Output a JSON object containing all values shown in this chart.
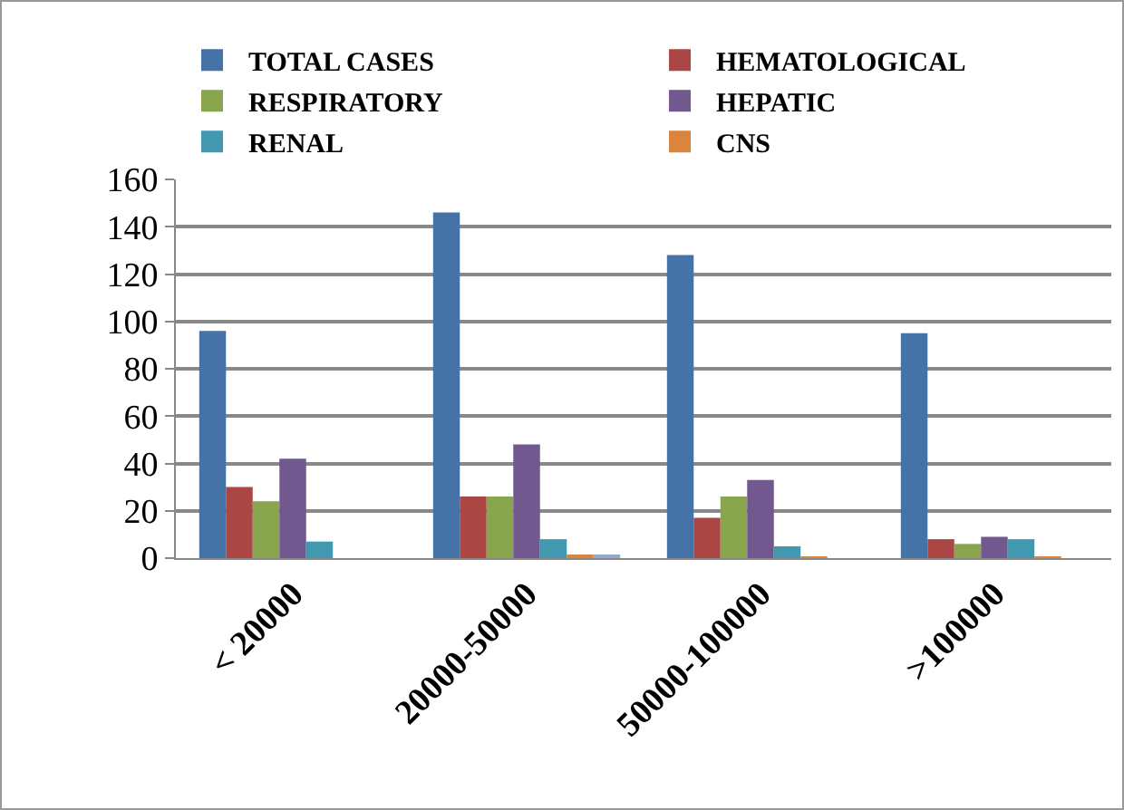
{
  "chart_data": {
    "type": "bar",
    "categories": [
      "< 20000",
      "20000-50000",
      "50000-100000",
      ">100000"
    ],
    "series": [
      {
        "name": "TOTAL CASES",
        "color": "#4572a7",
        "values": [
          96,
          146,
          128,
          95
        ]
      },
      {
        "name": "HEMATOLOGICAL",
        "color": "#aa4643",
        "values": [
          30,
          26,
          17,
          8
        ]
      },
      {
        "name": "RESPIRATORY",
        "color": "#89a54e",
        "values": [
          24,
          26,
          26,
          6
        ]
      },
      {
        "name": "HEPATIC",
        "color": "#71588f",
        "values": [
          42,
          48,
          33,
          9
        ]
      },
      {
        "name": "RENAL",
        "color": "#4198af",
        "values": [
          7,
          8,
          5,
          8
        ]
      },
      {
        "name": "CNS",
        "color": "#db843d",
        "values": [
          0,
          1.5,
          0.5,
          0.5
        ]
      },
      {
        "color": "#93a9cf",
        "values": [
          0,
          1.5,
          0,
          0
        ]
      }
    ],
    "ylim": [
      0,
      160
    ],
    "yticks": [
      0,
      20,
      40,
      60,
      80,
      100,
      120,
      140,
      160
    ],
    "grid": "y",
    "legend": "top"
  }
}
